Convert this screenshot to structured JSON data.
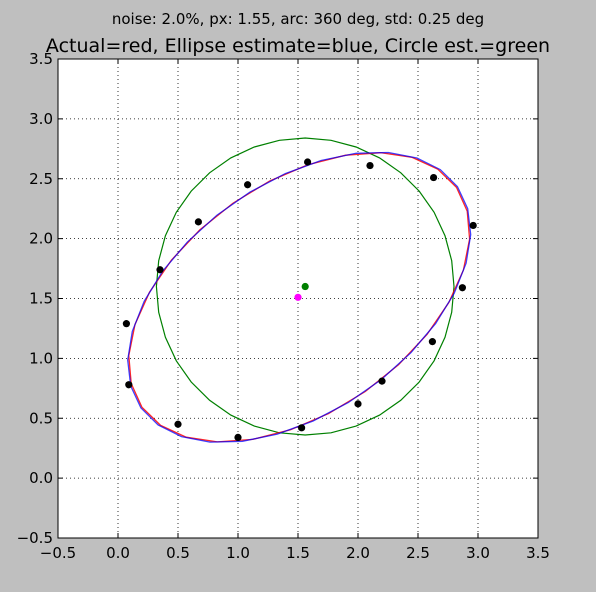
{
  "subtitle": "noise: 2.0%, px: 1.55, arc: 360 deg, std: 0.25 deg",
  "chart_data": {
    "type": "scatter",
    "title": "Actual=red, Ellipse estimate=blue, Circle est.=green",
    "xlabel": "",
    "ylabel": "",
    "xlim": [
      -0.5,
      3.5
    ],
    "ylim": [
      -0.5,
      3.5
    ],
    "xticks": [
      "−0.5",
      "0.0",
      "0.5",
      "1.0",
      "1.5",
      "2.0",
      "2.5",
      "3.0",
      "3.5"
    ],
    "yticks": [
      "−0.5",
      "0.0",
      "0.5",
      "1.0",
      "1.5",
      "2.0",
      "2.5",
      "3.0",
      "3.5"
    ],
    "grid": true,
    "colors": {
      "actual": "#ff0000",
      "ellipse": "#0000ff",
      "circle": "#008000",
      "points": "#000000",
      "center_actual": "#ff00ff",
      "center_circle": "#008000"
    },
    "points": {
      "x": [
        1.58,
        2.1,
        2.63,
        2.96,
        2.87,
        2.62,
        2.2,
        2.0,
        1.53,
        1.0,
        0.5,
        0.09,
        0.07,
        0.35,
        0.67,
        1.08
      ],
      "y": [
        2.64,
        2.61,
        2.51,
        2.11,
        1.59,
        1.14,
        0.81,
        0.62,
        0.42,
        0.34,
        0.45,
        0.78,
        1.29,
        1.74,
        2.14,
        2.45
      ]
    },
    "ellipse_actual": {
      "cx": 1.51,
      "cy": 1.51,
      "a": 1.6,
      "b": 0.96,
      "angle_deg": 35
    },
    "ellipse_estimate": {
      "cx": 1.51,
      "cy": 1.51,
      "a": 1.61,
      "b": 0.96,
      "angle_deg": 35
    },
    "circle_estimate": {
      "cx": 1.56,
      "cy": 1.6,
      "r": 1.24
    },
    "centers": {
      "actual": {
        "x": 1.5,
        "y": 1.51
      },
      "circle": {
        "x": 1.56,
        "y": 1.6
      }
    }
  }
}
